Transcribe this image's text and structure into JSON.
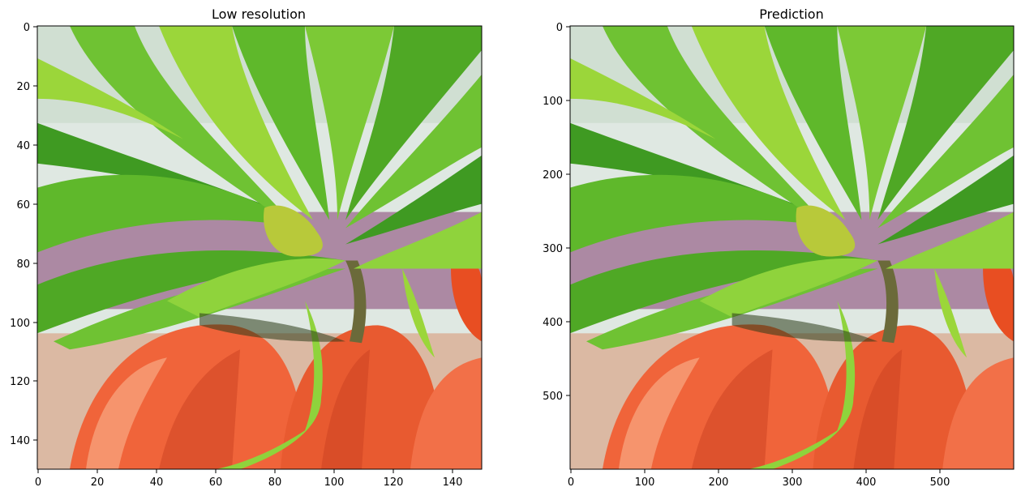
{
  "figure": {
    "panels": [
      {
        "title": "Low resolution",
        "image": "low-resolution flower photo (green leaves, orange petals), visibly pixelated",
        "x_ticks": [
          "0",
          "20",
          "40",
          "60",
          "80",
          "100",
          "120",
          "140"
        ],
        "y_ticks": [
          "0",
          "20",
          "40",
          "60",
          "80",
          "100",
          "120",
          "140"
        ],
        "xlim": [
          0,
          150
        ],
        "ylim": [
          150,
          0
        ]
      },
      {
        "title": "Prediction",
        "image": "super-resolved flower photo (green leaves, orange petals), smooth",
        "x_ticks": [
          "0",
          "100",
          "200",
          "300",
          "400",
          "500"
        ],
        "y_ticks": [
          "0",
          "100",
          "200",
          "300",
          "400",
          "500"
        ],
        "xlim": [
          0,
          600
        ],
        "ylim": [
          600,
          0
        ]
      }
    ]
  },
  "colors": {
    "leaf": "#5fb82b",
    "leaf_light": "#9bd63a",
    "leaf_dark": "#2f7a1a",
    "petal": "#f0643a",
    "petal_dark": "#c9401f",
    "bg_purple": "#9b6a8e",
    "sky": "#dfe8e2"
  }
}
